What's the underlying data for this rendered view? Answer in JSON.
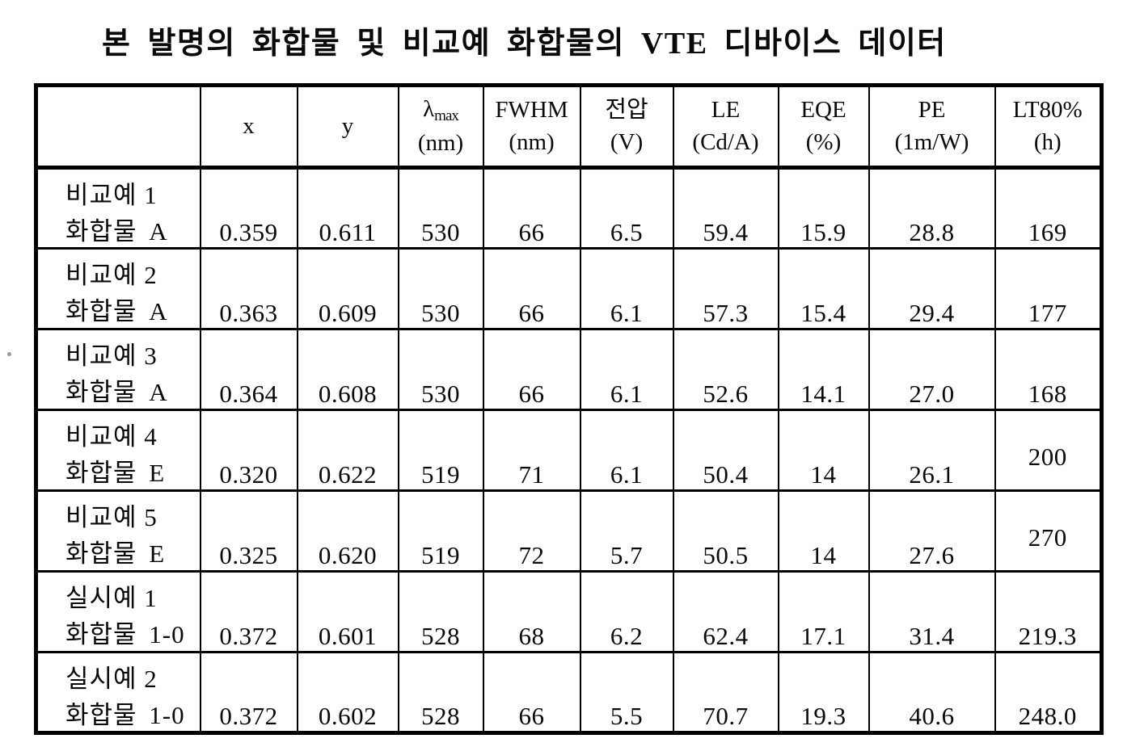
{
  "title": "본 발명의 화합물 및 비교예 화합물의 VTE 디바이스 데이터",
  "table": {
    "headers": [
      {
        "line1": "",
        "line2": ""
      },
      {
        "line1": "x",
        "line2": ""
      },
      {
        "line1": "y",
        "line2": ""
      },
      {
        "line1": "λ",
        "sub": "max",
        "line2": "(nm)"
      },
      {
        "line1": "FWHM",
        "line2": "(nm)"
      },
      {
        "line1": "전압",
        "line2": "(V)"
      },
      {
        "line1": "LE",
        "line2": "(Cd/A)"
      },
      {
        "line1": "EQE",
        "line2": "(%)"
      },
      {
        "line1": "PE",
        "line2": "(1m/W)"
      },
      {
        "line1": "LT80%",
        "line2": "(h)"
      }
    ],
    "rows": [
      {
        "example": "비교예 1",
        "compound": "화합물 A",
        "values": [
          "0.359",
          "0.611",
          "530",
          "66",
          "6.5",
          "59.4",
          "15.9",
          "28.8",
          "169"
        ],
        "raised_last": false
      },
      {
        "example": "비교예 2",
        "compound": "화합물 A",
        "values": [
          "0.363",
          "0.609",
          "530",
          "66",
          "6.1",
          "57.3",
          "15.4",
          "29.4",
          "177"
        ],
        "raised_last": false
      },
      {
        "example": "비교예 3",
        "compound": "화합물 A",
        "values": [
          "0.364",
          "0.608",
          "530",
          "66",
          "6.1",
          "52.6",
          "14.1",
          "27.0",
          "168"
        ],
        "raised_last": false
      },
      {
        "example": "비교예 4",
        "compound": "화합물 E",
        "values": [
          "0.320",
          "0.622",
          "519",
          "71",
          "6.1",
          "50.4",
          "14",
          "26.1",
          "200"
        ],
        "raised_last": true
      },
      {
        "example": "비교예 5",
        "compound": "화합물 E",
        "values": [
          "0.325",
          "0.620",
          "519",
          "72",
          "5.7",
          "50.5",
          "14",
          "27.6",
          "270"
        ],
        "raised_last": true
      },
      {
        "example": "실시예 1",
        "compound": "화합물 1-0",
        "values": [
          "0.372",
          "0.601",
          "528",
          "68",
          "6.2",
          "62.4",
          "17.1",
          "31.4",
          "219.3"
        ],
        "raised_last": false
      },
      {
        "example": "실시예 2",
        "compound": "화합물 1-0",
        "values": [
          "0.372",
          "0.602",
          "528",
          "66",
          "5.5",
          "70.7",
          "19.3",
          "40.6",
          "248.0"
        ],
        "raised_last": false
      }
    ]
  }
}
